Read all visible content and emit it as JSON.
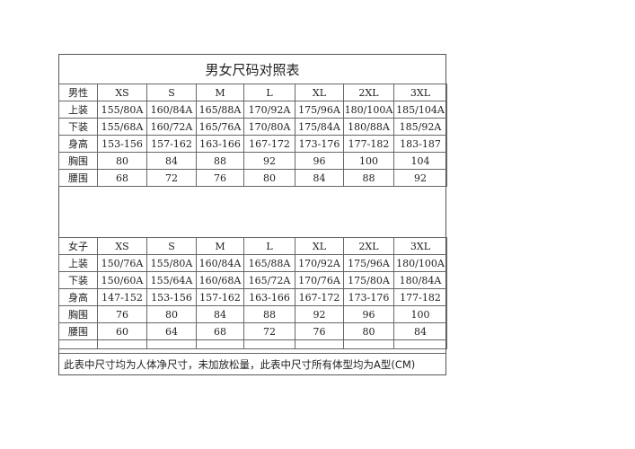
{
  "title": "男女尺码对照表",
  "sizes": [
    "XS",
    "S",
    "M",
    "L",
    "XL",
    "2XL",
    "3XL"
  ],
  "men": {
    "label": "男性",
    "rows": [
      {
        "label": "上装",
        "values": [
          "155/80A",
          "160/84A",
          "165/88A",
          "170/92A",
          "175/96A",
          "180/100A",
          "185/104A"
        ]
      },
      {
        "label": "下装",
        "values": [
          "155/68A",
          "160/72A",
          "165/76A",
          "170/80A",
          "175/84A",
          "180/88A",
          "185/92A"
        ]
      },
      {
        "label": "身高",
        "values": [
          "153-156",
          "157-162",
          "163-166",
          "167-172",
          "173-176",
          "177-182",
          "183-187"
        ]
      },
      {
        "label": "胸围",
        "values": [
          "80",
          "84",
          "88",
          "92",
          "96",
          "100",
          "104"
        ]
      },
      {
        "label": "腰围",
        "values": [
          "68",
          "72",
          "76",
          "80",
          "84",
          "88",
          "92"
        ]
      }
    ]
  },
  "women": {
    "label": "女子",
    "rows": [
      {
        "label": "上装",
        "values": [
          "150/76A",
          "155/80A",
          "160/84A",
          "165/88A",
          "170/92A",
          "175/96A",
          "180/100A"
        ]
      },
      {
        "label": "下装",
        "values": [
          "150/60A",
          "155/64A",
          "160/68A",
          "165/72A",
          "170/76A",
          "175/80A",
          "180/84A"
        ]
      },
      {
        "label": "身高",
        "values": [
          "147-152",
          "153-156",
          "157-162",
          "163-166",
          "167-172",
          "173-176",
          "177-182"
        ]
      },
      {
        "label": "胸围",
        "values": [
          "76",
          "80",
          "84",
          "88",
          "92",
          "96",
          "100"
        ]
      },
      {
        "label": "腰围",
        "values": [
          "60",
          "64",
          "68",
          "72",
          "76",
          "80",
          "84"
        ]
      }
    ]
  },
  "footer": "此表中尺寸均为人体净尺寸，未加放松量，此表中尺寸所有体型均为A型(CM)"
}
